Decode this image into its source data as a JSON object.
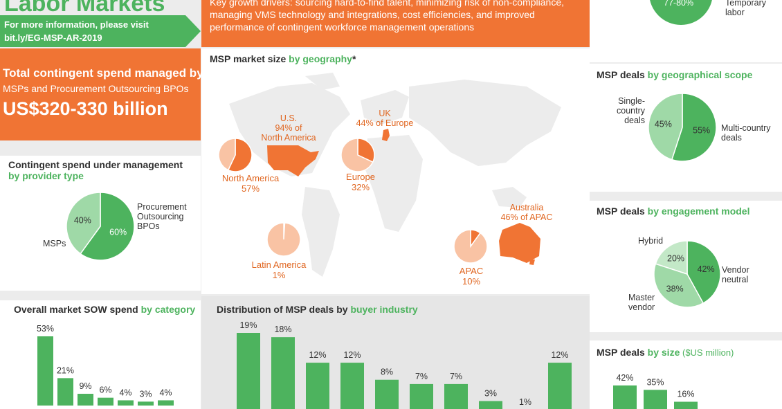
{
  "header": {
    "title": "Labor Markets",
    "visit_line1": "For more information, please visit",
    "visit_line2": "bit.ly/EG-MSP-AR-2019",
    "growth_drivers": "Key growth drivers: sourcing hard-to-find talent, minimizing risk of non-compliance, managing VMS technology and integrations, cost efficiencies, and improved performance of contingent workforce management operations"
  },
  "total_spend": {
    "line1": "Total contingent spend managed by",
    "line2": "MSPs and Procurement Outsourcing BPOs",
    "value": "US$320-330 billion"
  },
  "colors": {
    "green": "#4db35e",
    "light_green": "#9fd9a7",
    "orange": "#f07434",
    "light_orange": "#f9c3a4"
  },
  "top_right": {
    "pct": "77-80%",
    "label1": "Temporary",
    "label2": "labor"
  },
  "provider_type": {
    "title_a": "Contingent spend under management",
    "title_b": "by provider type",
    "label_pbo": [
      "Procurement",
      "Outsourcing",
      "BPOs"
    ],
    "label_msp": "MSPs"
  },
  "geography": {
    "title_a": "MSP market size ",
    "title_b": "by geography",
    "title_c": "*",
    "na_label": "North America",
    "na_pct": "57%",
    "us_label": "U.S.",
    "us_sub1": "94% of",
    "us_sub2": "North America",
    "eu_label": "Europe",
    "eu_pct": "32%",
    "uk_label": "UK",
    "uk_sub": "44% of Europe",
    "la_label": "Latin America",
    "la_pct": "1%",
    "apac_label": "APAC",
    "apac_pct": "10%",
    "au_label": "Australia",
    "au_sub": "46% of APAC"
  },
  "geo_scope": {
    "title_a": "MSP deals ",
    "title_b": "by geographical scope",
    "single": [
      "Single-",
      "country",
      "deals"
    ],
    "multi": [
      "Multi-country",
      "deals"
    ]
  },
  "engagement": {
    "title_a": "MSP deals ",
    "title_b": "by engagement model",
    "hybrid": "Hybrid",
    "vendor": [
      "Vendor",
      "neutral"
    ],
    "master": [
      "Master",
      "vendor"
    ]
  },
  "sow": {
    "title_a": "Overall market SOW spend ",
    "title_b": "by category"
  },
  "industry": {
    "title_a": "Distribution of MSP deals by ",
    "title_b": "buyer industry"
  },
  "deal_size": {
    "title_a": "MSP deals ",
    "title_b": "by size",
    "title_c": " ($US million)"
  },
  "chart_data": [
    {
      "type": "pie",
      "title": "Contingent spend under management by provider type",
      "labels": [
        "Procurement Outsourcing BPOs",
        "MSPs"
      ],
      "values": [
        60,
        40
      ]
    },
    {
      "type": "pie",
      "title": "MSP deals by geographical scope",
      "labels": [
        "Multi-country deals",
        "Single-country deals"
      ],
      "values": [
        55,
        45
      ]
    },
    {
      "type": "pie",
      "title": "MSP deals by engagement model",
      "labels": [
        "Vendor neutral",
        "Master vendor",
        "Hybrid"
      ],
      "values": [
        42,
        38,
        20
      ]
    },
    {
      "type": "pie",
      "title": "MSP market size by geography",
      "labels": [
        "North America",
        "Europe",
        "APAC",
        "Latin America"
      ],
      "values": [
        57,
        32,
        10,
        1
      ]
    },
    {
      "type": "bar",
      "title": "Overall market SOW spend by category",
      "values": [
        53,
        21,
        9,
        6,
        4,
        3,
        4
      ],
      "value_labels": [
        "53%",
        "21%",
        "9%",
        "6%",
        "4%",
        "3%",
        "4%"
      ],
      "ylim": [
        0,
        60
      ]
    },
    {
      "type": "bar",
      "title": "Distribution of MSP deals by buyer industry",
      "values": [
        19,
        18,
        12,
        12,
        8,
        7,
        7,
        3,
        1,
        12
      ],
      "value_labels": [
        "19%",
        "18%",
        "12%",
        "12%",
        "8%",
        "7%",
        "7%",
        "3%",
        "1%",
        "12%"
      ],
      "ylim": [
        0,
        20
      ]
    },
    {
      "type": "bar",
      "title": "MSP deals by size ($US million)",
      "values": [
        42,
        35,
        16
      ],
      "value_labels": [
        "42%",
        "35%",
        "16%"
      ],
      "ylim": [
        0,
        45
      ]
    }
  ]
}
